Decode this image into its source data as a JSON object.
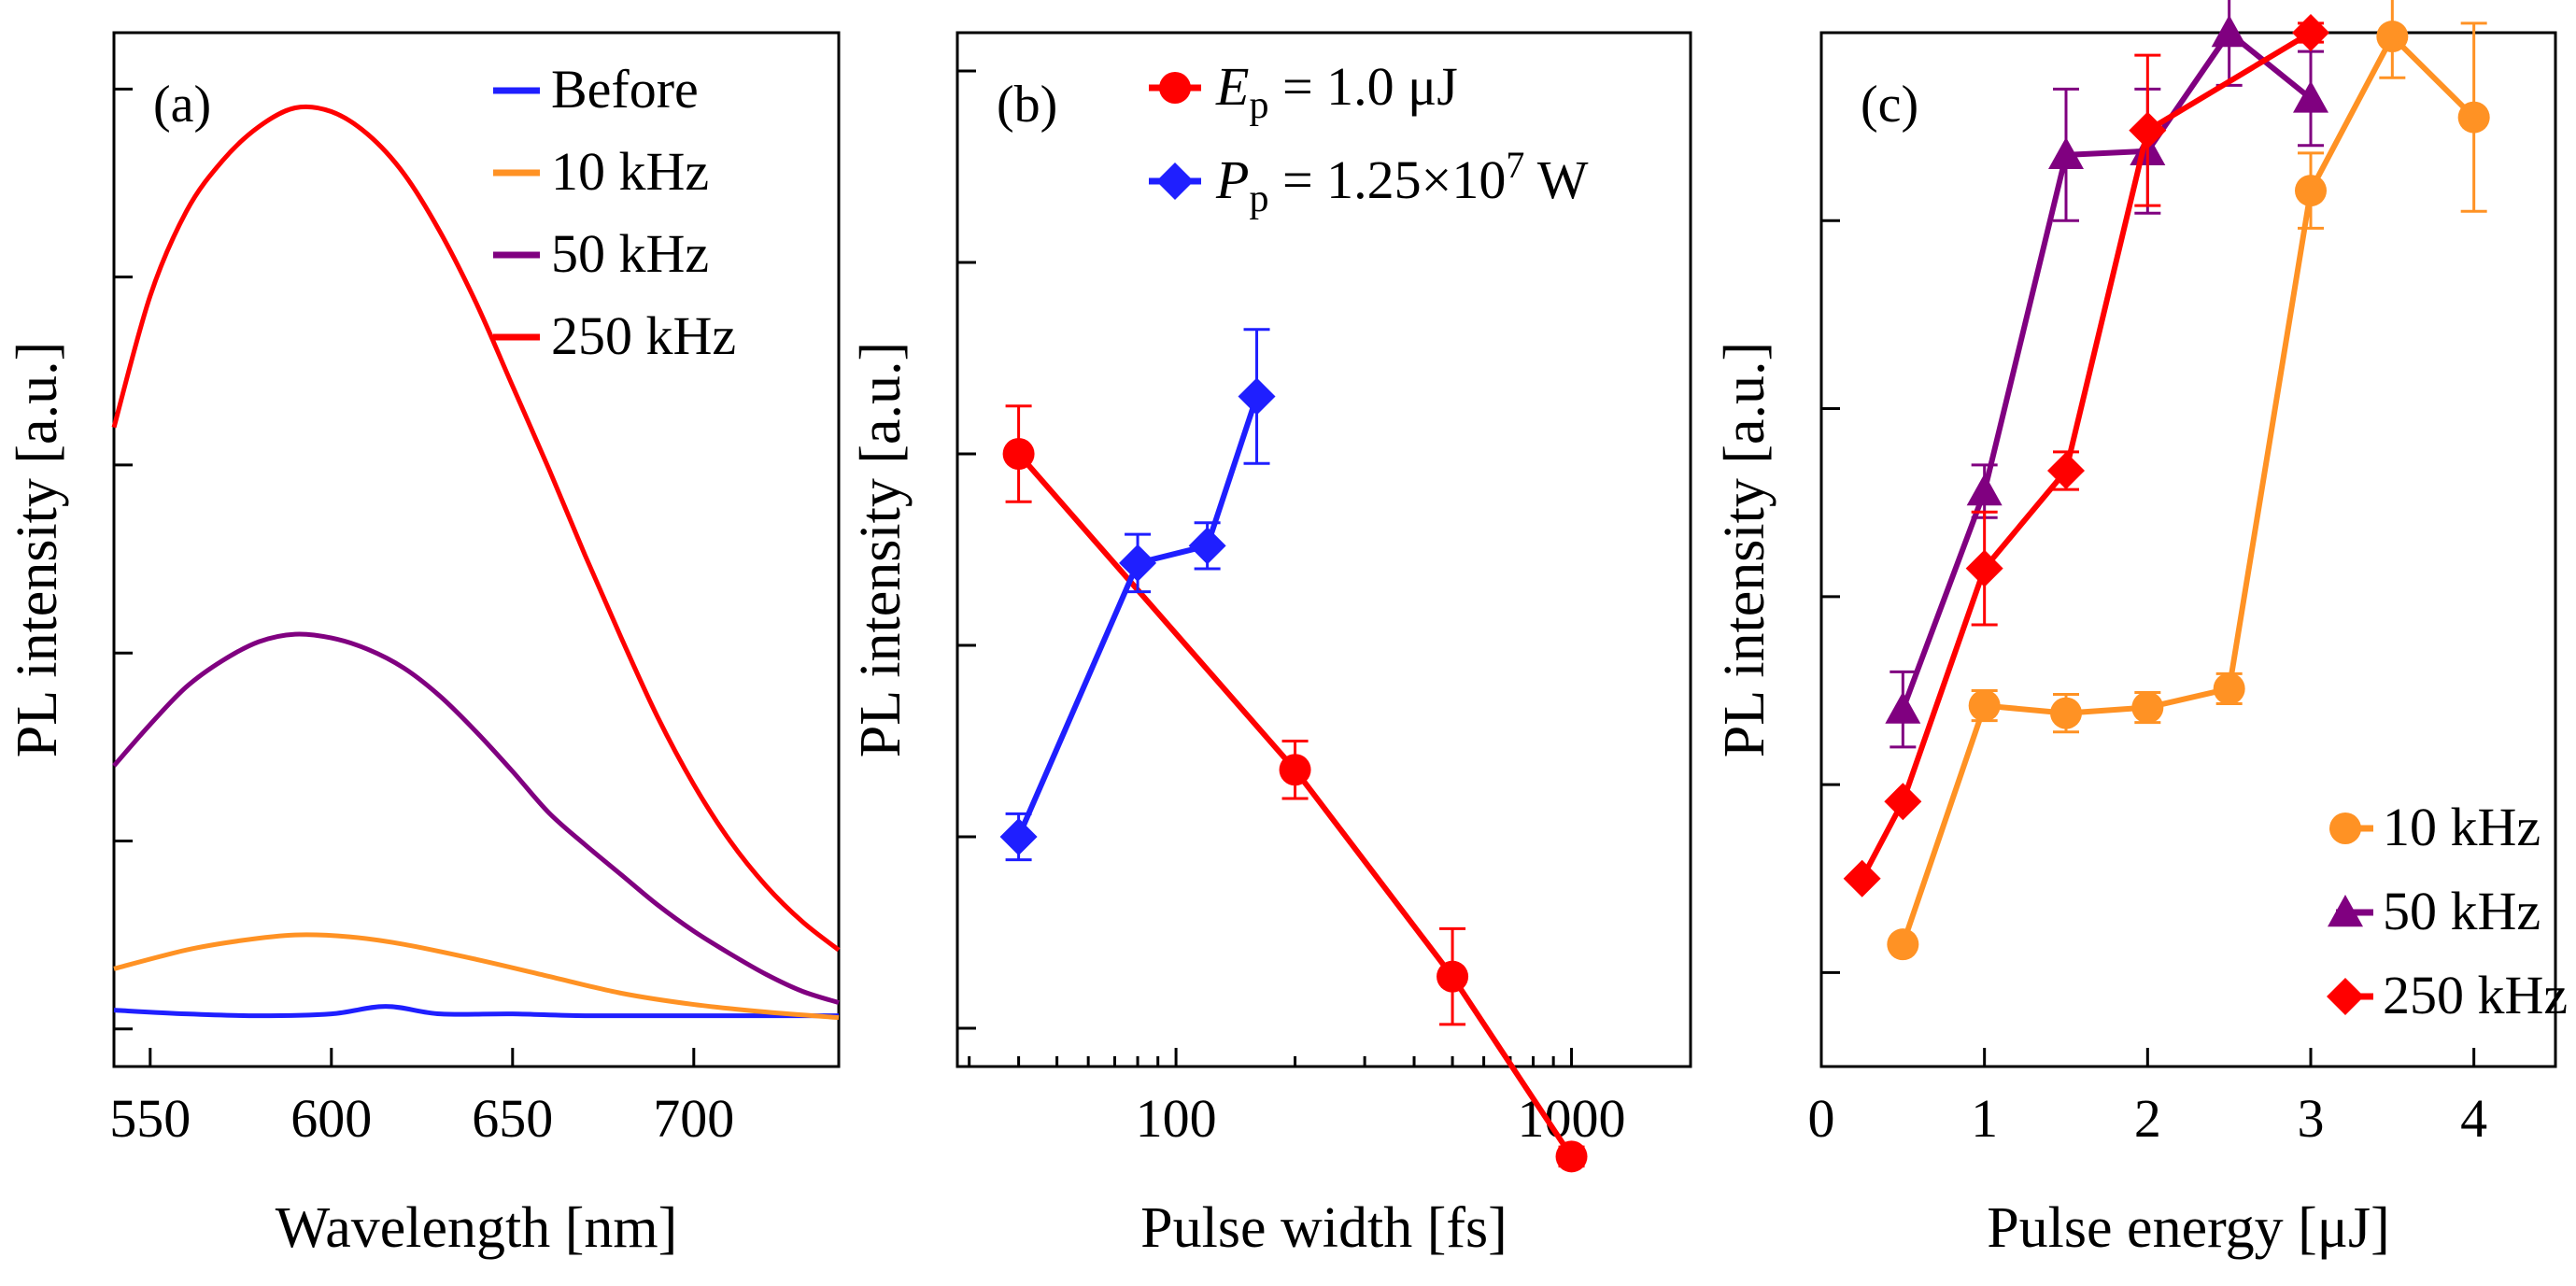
{
  "chart_data": [
    {
      "panel": "(a)",
      "type": "line",
      "xlabel": "Wavelength [nm]",
      "ylabel": "PL intensity [a.u.]",
      "xlim": [
        540,
        740
      ],
      "ylim": [
        -0.2,
        5.3
      ],
      "xticks": [
        550,
        600,
        650,
        700
      ],
      "yticks": [
        0,
        1,
        2,
        3,
        4,
        5
      ],
      "legend_position": "top-right",
      "series": [
        {
          "name": "Before",
          "color": "#1f1fff",
          "x": [
            540,
            560,
            580,
            600,
            615,
            630,
            650,
            670,
            700,
            740
          ],
          "y": [
            0.1,
            0.08,
            0.07,
            0.08,
            0.12,
            0.08,
            0.08,
            0.07,
            0.07,
            0.07
          ]
        },
        {
          "name": "10 kHz",
          "color": "#ff9224",
          "x": [
            540,
            560,
            575,
            590,
            605,
            620,
            640,
            660,
            680,
            700,
            720,
            740
          ],
          "y": [
            0.32,
            0.42,
            0.47,
            0.5,
            0.49,
            0.45,
            0.37,
            0.28,
            0.19,
            0.13,
            0.09,
            0.06
          ]
        },
        {
          "name": "50 kHz",
          "color": "#800080",
          "x": [
            540,
            550,
            560,
            570,
            580,
            590,
            600,
            610,
            620,
            630,
            640,
            650,
            660,
            670,
            680,
            690,
            700,
            710,
            720,
            730,
            740
          ],
          "y": [
            1.4,
            1.62,
            1.82,
            1.96,
            2.06,
            2.1,
            2.08,
            2.02,
            1.92,
            1.77,
            1.58,
            1.37,
            1.15,
            0.98,
            0.82,
            0.66,
            0.52,
            0.4,
            0.29,
            0.2,
            0.14
          ]
        },
        {
          "name": "250 kHz",
          "color": "#ff0000",
          "x": [
            540,
            550,
            560,
            570,
            580,
            590,
            600,
            610,
            620,
            630,
            640,
            650,
            660,
            670,
            680,
            690,
            700,
            710,
            720,
            730,
            740
          ],
          "y": [
            3.2,
            3.9,
            4.35,
            4.62,
            4.8,
            4.9,
            4.88,
            4.76,
            4.55,
            4.24,
            3.86,
            3.42,
            2.98,
            2.52,
            2.08,
            1.66,
            1.3,
            1.0,
            0.76,
            0.57,
            0.42
          ]
        }
      ]
    },
    {
      "panel": "(b)",
      "type": "line",
      "xlabel": "Pulse width [fs]",
      "ylabel": "PL intensity [a.u.]",
      "xscale": "log",
      "xlim": [
        28,
        2000
      ],
      "ylim": [
        0.8,
        6.2
      ],
      "xticks": [
        100,
        1000
      ],
      "xticklabels": [
        "100",
        "1000"
      ],
      "yticks": [
        1,
        2,
        3,
        4,
        5,
        6
      ],
      "legend_position": "top-left",
      "series": [
        {
          "name": "Ep = 1.0 μJ",
          "legend_main": "E",
          "legend_sub": "p",
          "legend_rest": " = 1.0 μJ",
          "color": "#ff0000",
          "marker": "circle",
          "x": [
            40,
            200,
            500,
            1000
          ],
          "y": [
            4.0,
            2.35,
            1.27,
            0.33
          ],
          "err": [
            0.25,
            0.15,
            0.25,
            0.05
          ]
        },
        {
          "name": "Pp = 1.25×10^7 W",
          "legend_main": "P",
          "legend_sub": "p",
          "legend_rest": " = 1.25×10",
          "legend_sup": "7",
          "legend_tail": " W",
          "color": "#1f1fff",
          "marker": "diamond",
          "x": [
            40,
            80,
            120,
            160
          ],
          "y": [
            2.0,
            3.43,
            3.52,
            4.3
          ],
          "err": [
            0.12,
            0.15,
            0.12,
            0.35
          ]
        }
      ]
    },
    {
      "panel": "(c)",
      "type": "line",
      "xlabel": "Pulse energy [μJ]",
      "ylabel": "PL intensity [a.u.]",
      "xlim": [
        0,
        4.5
      ],
      "ylim": [
        -0.5,
        5.0
      ],
      "xticks": [
        0,
        1,
        2,
        3,
        4
      ],
      "yticks": [
        0,
        1,
        2,
        3,
        4,
        5
      ],
      "legend_position": "bottom-right",
      "series": [
        {
          "name": "10 kHz",
          "color": "#ff9224",
          "marker": "circle",
          "x": [
            0.5,
            1.0,
            1.5,
            2.0,
            2.5,
            3.0,
            3.5,
            4.0
          ],
          "y": [
            0.15,
            1.42,
            1.38,
            1.41,
            1.51,
            4.16,
            4.98,
            4.55
          ],
          "err": [
            0.03,
            0.08,
            0.1,
            0.08,
            0.08,
            0.2,
            0.22,
            0.5
          ]
        },
        {
          "name": "50 kHz",
          "color": "#800080",
          "marker": "triangle",
          "x": [
            0.5,
            1.0,
            1.5,
            2.0,
            2.5,
            3.0
          ],
          "y": [
            1.4,
            2.56,
            4.35,
            4.37,
            5.0,
            4.65
          ],
          "err": [
            0.2,
            0.14,
            0.35,
            0.33,
            0.28,
            0.25
          ]
        },
        {
          "name": "250 kHz",
          "color": "#ff0000",
          "marker": "diamond",
          "x": [
            0.25,
            0.5,
            1.0,
            1.5,
            2.0,
            3.0
          ],
          "y": [
            0.5,
            0.91,
            2.15,
            2.67,
            4.48,
            5.0
          ],
          "err": [
            0.0,
            0.0,
            0.3,
            0.1,
            0.4,
            0.05
          ]
        }
      ]
    }
  ]
}
